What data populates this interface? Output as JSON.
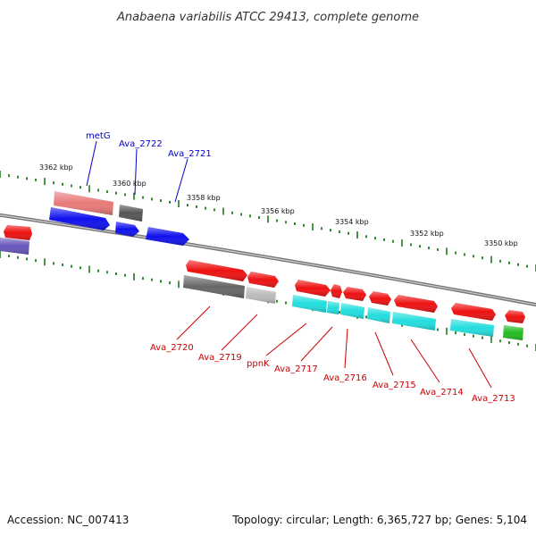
{
  "title": "Anabaena variabilis ATCC 29413, complete genome",
  "accession": "Accession: NC_007413",
  "summary": "Topology: circular; Length: 6,365,727 bp; Genes: 5,104",
  "colors": {
    "backbone": "#8c8c8c",
    "tick": "#1e7a1e",
    "label_top": "#0000cc",
    "label_bottom": "#cc0000",
    "red": "#ee1111",
    "pink": "#e87878",
    "blue": "#1010ee",
    "darkgray": "#666666",
    "lightgray": "#bbbbbb",
    "cyan": "#22dddd",
    "green": "#22bb22",
    "purple": "#6655bb"
  },
  "scale_labels": [
    "3362 kbp",
    "3360 kbp",
    "3358 kbp",
    "3356 kbp",
    "3354 kbp",
    "3352 kbp",
    "3350 kbp"
  ],
  "genes_top": [
    "metG",
    "Ava_2722",
    "Ava_2721"
  ],
  "genes_bottom": [
    "Ava_2720",
    "Ava_2719",
    "ppnK",
    "Ava_2717",
    "Ava_2716",
    "Ava_2715",
    "Ava_2714",
    "Ava_2713"
  ]
}
